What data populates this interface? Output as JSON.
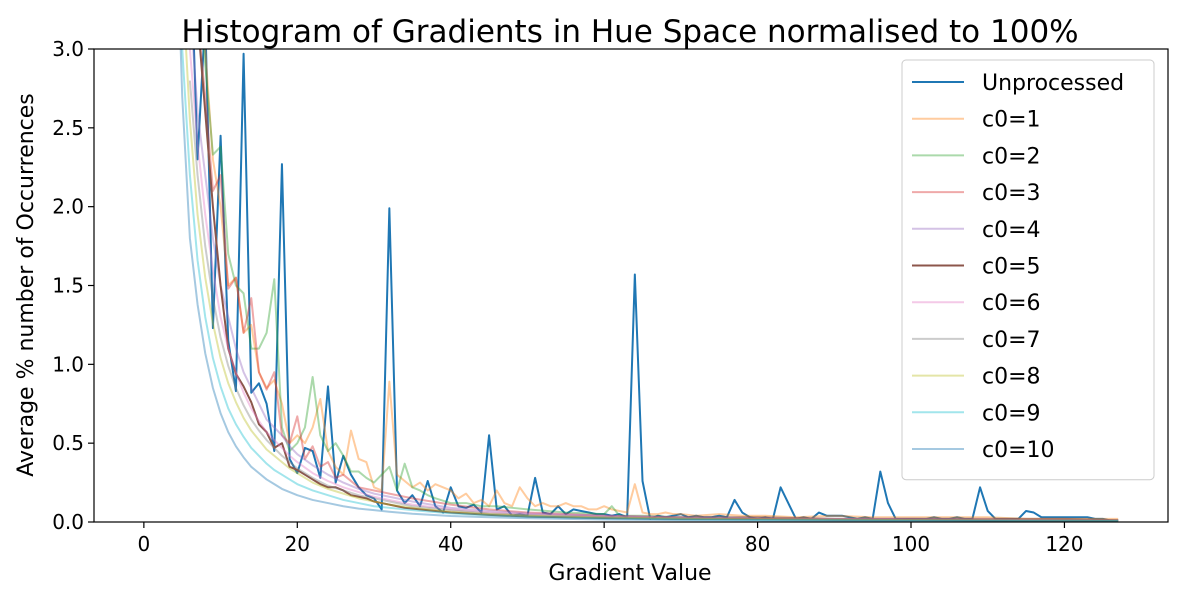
{
  "chart_data": {
    "type": "line",
    "title": "Histogram of Gradients in Hue Space normalised to 100%",
    "xlabel": "Gradient Value",
    "ylabel": "Average % number of Occurrences",
    "xlim": [
      -6.5,
      133.5
    ],
    "ylim": [
      0,
      3.0
    ],
    "xticks": [
      0,
      20,
      40,
      60,
      80,
      100,
      120
    ],
    "yticks": [
      0.0,
      0.5,
      1.0,
      1.5,
      2.0,
      2.5,
      3.0
    ],
    "ytick_labels": [
      "0.0",
      "0.5",
      "1.0",
      "1.5",
      "2.0",
      "2.5",
      "3.0"
    ],
    "grid": false,
    "legend_position": "top-right",
    "series": [
      {
        "name": "Unprocessed",
        "color": "#1f77b4",
        "alpha": 1.0,
        "x": [
          6,
          7,
          8,
          9,
          10,
          11,
          12,
          13,
          14,
          15,
          16,
          17,
          18,
          19,
          20,
          21,
          22,
          23,
          24,
          25,
          26,
          27,
          28,
          29,
          30,
          31,
          32,
          33,
          34,
          35,
          36,
          37,
          38,
          39,
          40,
          41,
          42,
          43,
          44,
          45,
          46,
          47,
          48,
          49,
          50,
          51,
          52,
          53,
          54,
          55,
          56,
          57,
          58,
          59,
          60,
          61,
          62,
          63,
          64,
          65,
          66,
          67,
          68,
          69,
          70,
          71,
          72,
          73,
          74,
          75,
          76,
          77,
          78,
          79,
          80,
          81,
          82,
          83,
          84,
          85,
          86,
          87,
          88,
          89,
          90,
          91,
          92,
          93,
          94,
          95,
          96,
          97,
          98,
          99,
          100,
          101,
          102,
          103,
          104,
          105,
          106,
          107,
          108,
          109,
          110,
          111,
          112,
          113,
          114,
          115,
          116,
          117,
          118,
          119,
          120,
          121,
          122,
          123,
          124,
          125,
          126,
          127
        ],
        "y": [
          3.8,
          2.3,
          3.2,
          1.23,
          2.45,
          1.15,
          0.83,
          2.97,
          0.82,
          0.88,
          0.75,
          0.45,
          2.27,
          0.4,
          0.31,
          0.47,
          0.45,
          0.28,
          0.86,
          0.25,
          0.42,
          0.3,
          0.22,
          0.17,
          0.15,
          0.08,
          1.99,
          0.2,
          0.12,
          0.17,
          0.1,
          0.26,
          0.1,
          0.06,
          0.22,
          0.1,
          0.09,
          0.11,
          0.06,
          0.55,
          0.08,
          0.1,
          0.04,
          0.05,
          0.04,
          0.28,
          0.06,
          0.05,
          0.1,
          0.05,
          0.08,
          0.07,
          0.06,
          0.05,
          0.05,
          0.04,
          0.05,
          0.03,
          1.57,
          0.26,
          0.02,
          0.04,
          0.03,
          0.04,
          0.05,
          0.03,
          0.04,
          0.03,
          0.03,
          0.04,
          0.03,
          0.14,
          0.06,
          0.03,
          0.02,
          0.03,
          0.02,
          0.22,
          0.12,
          0.02,
          0.03,
          0.02,
          0.06,
          0.04,
          0.04,
          0.04,
          0.03,
          0.02,
          0.03,
          0.02,
          0.32,
          0.12,
          0.02,
          0.02,
          0.02,
          0.02,
          0.02,
          0.03,
          0.02,
          0.02,
          0.03,
          0.02,
          0.02,
          0.22,
          0.07,
          0.02,
          0.02,
          0.02,
          0.02,
          0.07,
          0.06,
          0.03,
          0.03,
          0.03,
          0.03,
          0.03,
          0.03,
          0.03,
          0.02,
          0.02,
          0.01,
          0.01
        ]
      },
      {
        "name": "c0=1",
        "color": "#ff7f0e",
        "alpha": 0.4,
        "x": [
          7,
          8,
          9,
          10,
          11,
          12,
          13,
          14,
          15,
          16,
          17,
          18,
          19,
          20,
          21,
          22,
          23,
          24,
          25,
          26,
          27,
          28,
          29,
          30,
          31,
          32,
          33,
          34,
          35,
          36,
          37,
          38,
          39,
          40,
          41,
          42,
          43,
          44,
          45,
          46,
          47,
          48,
          49,
          50,
          51,
          52,
          53,
          54,
          55,
          56,
          57,
          58,
          59,
          60,
          61,
          62,
          63,
          64,
          65,
          66,
          67,
          68,
          69,
          70,
          72,
          75,
          78,
          81,
          85,
          90,
          95,
          100,
          105,
          110,
          115,
          120,
          127
        ],
        "y": [
          3.5,
          3.0,
          2.3,
          2.0,
          1.5,
          1.55,
          1.2,
          1.25,
          0.95,
          0.85,
          0.9,
          0.75,
          0.5,
          0.55,
          0.5,
          0.6,
          0.78,
          0.45,
          0.35,
          0.3,
          0.58,
          0.4,
          0.38,
          0.22,
          0.2,
          0.89,
          0.3,
          0.26,
          0.22,
          0.25,
          0.2,
          0.24,
          0.22,
          0.2,
          0.15,
          0.18,
          0.12,
          0.14,
          0.1,
          0.2,
          0.12,
          0.1,
          0.22,
          0.15,
          0.1,
          0.12,
          0.1,
          0.1,
          0.12,
          0.1,
          0.1,
          0.08,
          0.08,
          0.1,
          0.08,
          0.07,
          0.06,
          0.24,
          0.06,
          0.05,
          0.05,
          0.06,
          0.05,
          0.05,
          0.04,
          0.05,
          0.04,
          0.04,
          0.03,
          0.04,
          0.03,
          0.03,
          0.03,
          0.03,
          0.02,
          0.02,
          0.02
        ]
      },
      {
        "name": "c0=2",
        "color": "#2ca02c",
        "alpha": 0.4,
        "x": [
          7,
          8,
          9,
          10,
          11,
          12,
          13,
          14,
          15,
          16,
          17,
          18,
          19,
          20,
          21,
          22,
          23,
          24,
          25,
          26,
          27,
          28,
          29,
          30,
          31,
          32,
          33,
          34,
          35,
          36,
          37,
          38,
          40,
          42,
          44,
          46,
          48,
          50,
          55,
          60,
          61,
          62,
          65,
          70,
          80,
          90,
          100,
          110,
          120,
          127
        ],
        "y": [
          3.5,
          2.9,
          2.33,
          2.38,
          1.7,
          1.5,
          1.45,
          1.1,
          1.1,
          1.2,
          1.54,
          0.6,
          0.45,
          0.5,
          0.6,
          0.92,
          0.55,
          0.45,
          0.5,
          0.42,
          0.32,
          0.32,
          0.28,
          0.25,
          0.3,
          0.35,
          0.2,
          0.37,
          0.22,
          0.2,
          0.17,
          0.15,
          0.12,
          0.12,
          0.1,
          0.1,
          0.09,
          0.08,
          0.06,
          0.05,
          0.1,
          0.04,
          0.04,
          0.03,
          0.03,
          0.02,
          0.02,
          0.02,
          0.02,
          0.01
        ]
      },
      {
        "name": "c0=3",
        "color": "#d62728",
        "alpha": 0.4,
        "x": [
          7,
          8,
          9,
          10,
          11,
          12,
          13,
          14,
          15,
          16,
          17,
          18,
          19,
          20,
          21,
          22,
          23,
          24,
          25,
          26,
          28,
          30,
          32,
          35,
          40,
          45,
          50,
          60,
          70,
          80,
          90,
          100,
          110,
          120,
          127
        ],
        "y": [
          3.2,
          2.7,
          2.1,
          2.2,
          1.48,
          1.55,
          1.2,
          1.42,
          0.95,
          0.84,
          0.95,
          0.55,
          0.5,
          0.67,
          0.4,
          0.48,
          0.35,
          0.38,
          0.28,
          0.3,
          0.22,
          0.2,
          0.18,
          0.15,
          0.11,
          0.08,
          0.06,
          0.04,
          0.03,
          0.03,
          0.02,
          0.02,
          0.02,
          0.02,
          0.01
        ]
      },
      {
        "name": "c0=4",
        "color": "#9467bd",
        "alpha": 0.4,
        "x": [
          6,
          7,
          8,
          9,
          10,
          11,
          12,
          13,
          14,
          15,
          16,
          17,
          18,
          19,
          20,
          22,
          24,
          26,
          28,
          30,
          32,
          35,
          40,
          45,
          50,
          60,
          70,
          80,
          90,
          100,
          110,
          120,
          127
        ],
        "y": [
          3.3,
          2.6,
          2.2,
          1.8,
          1.5,
          1.3,
          1.1,
          0.95,
          0.85,
          0.75,
          0.65,
          0.6,
          0.55,
          0.48,
          0.43,
          0.36,
          0.3,
          0.25,
          0.21,
          0.18,
          0.16,
          0.13,
          0.09,
          0.07,
          0.055,
          0.04,
          0.03,
          0.025,
          0.02,
          0.02,
          0.015,
          0.015,
          0.01
        ]
      },
      {
        "name": "c0=5",
        "color": "#8c564b",
        "alpha": 1.0,
        "x": [
          7,
          8,
          9,
          10,
          11,
          12,
          13,
          14,
          15,
          16,
          17,
          18,
          19,
          20,
          21,
          22,
          23,
          24,
          25,
          26,
          27,
          28,
          29,
          30,
          31,
          32,
          34,
          36,
          38,
          40,
          45,
          50,
          55,
          60,
          70,
          80,
          90,
          100,
          110,
          120,
          127
        ],
        "y": [
          3.2,
          2.6,
          2.0,
          1.5,
          1.1,
          0.94,
          0.86,
          0.76,
          0.62,
          0.57,
          0.47,
          0.5,
          0.35,
          0.33,
          0.3,
          0.27,
          0.24,
          0.22,
          0.22,
          0.2,
          0.17,
          0.16,
          0.15,
          0.13,
          0.12,
          0.11,
          0.09,
          0.08,
          0.07,
          0.06,
          0.045,
          0.035,
          0.03,
          0.025,
          0.02,
          0.02,
          0.015,
          0.015,
          0.01,
          0.01,
          0.01
        ]
      },
      {
        "name": "c0=6",
        "color": "#e377c2",
        "alpha": 0.4,
        "x": [
          6,
          7,
          8,
          9,
          10,
          11,
          12,
          13,
          14,
          15,
          16,
          17,
          18,
          19,
          20,
          22,
          24,
          26,
          28,
          30,
          32,
          35,
          40,
          45,
          50,
          60,
          70,
          80,
          90,
          100,
          110,
          120,
          127
        ],
        "y": [
          3.0,
          2.4,
          1.95,
          1.6,
          1.3,
          1.1,
          0.95,
          0.82,
          0.72,
          0.64,
          0.57,
          0.52,
          0.47,
          0.42,
          0.38,
          0.31,
          0.26,
          0.22,
          0.19,
          0.16,
          0.14,
          0.11,
          0.08,
          0.06,
          0.05,
          0.035,
          0.025,
          0.02,
          0.02,
          0.015,
          0.015,
          0.01,
          0.01
        ]
      },
      {
        "name": "c0=7",
        "color": "#7f7f7f",
        "alpha": 0.4,
        "x": [
          6,
          7,
          8,
          9,
          10,
          11,
          12,
          13,
          14,
          15,
          16,
          17,
          18,
          19,
          20,
          22,
          24,
          26,
          28,
          30,
          32,
          35,
          40,
          45,
          50,
          60,
          70,
          80,
          90,
          100,
          110,
          120,
          127
        ],
        "y": [
          2.8,
          2.2,
          1.75,
          1.42,
          1.17,
          0.99,
          0.85,
          0.74,
          0.65,
          0.58,
          0.52,
          0.47,
          0.42,
          0.38,
          0.34,
          0.28,
          0.23,
          0.2,
          0.17,
          0.15,
          0.13,
          0.1,
          0.075,
          0.055,
          0.045,
          0.032,
          0.024,
          0.019,
          0.016,
          0.013,
          0.011,
          0.01,
          0.009
        ]
      },
      {
        "name": "c0=8",
        "color": "#bcbd22",
        "alpha": 0.4,
        "x": [
          5.5,
          6,
          7,
          8,
          9,
          10,
          11,
          12,
          13,
          14,
          15,
          16,
          17,
          18,
          19,
          20,
          22,
          24,
          26,
          28,
          30,
          32,
          35,
          40,
          45,
          50,
          60,
          70,
          80,
          90,
          100,
          110,
          120,
          127
        ],
        "y": [
          3.0,
          2.55,
          1.95,
          1.55,
          1.26,
          1.04,
          0.88,
          0.76,
          0.66,
          0.58,
          0.52,
          0.46,
          0.42,
          0.38,
          0.34,
          0.31,
          0.25,
          0.21,
          0.18,
          0.15,
          0.13,
          0.11,
          0.09,
          0.065,
          0.05,
          0.04,
          0.028,
          0.021,
          0.017,
          0.014,
          0.012,
          0.01,
          0.009,
          0.008
        ]
      },
      {
        "name": "c0=9",
        "color": "#17becf",
        "alpha": 0.4,
        "x": [
          5,
          6,
          7,
          8,
          9,
          10,
          11,
          12,
          13,
          14,
          15,
          16,
          17,
          18,
          19,
          20,
          22,
          24,
          26,
          28,
          30,
          32,
          35,
          40,
          45,
          50,
          60,
          70,
          80,
          90,
          100,
          110,
          120,
          127
        ],
        "y": [
          3.0,
          2.2,
          1.66,
          1.3,
          1.04,
          0.86,
          0.72,
          0.62,
          0.54,
          0.47,
          0.42,
          0.37,
          0.33,
          0.3,
          0.27,
          0.24,
          0.2,
          0.17,
          0.14,
          0.12,
          0.1,
          0.09,
          0.075,
          0.055,
          0.042,
          0.033,
          0.023,
          0.017,
          0.013,
          0.011,
          0.009,
          0.008,
          0.007,
          0.006
        ]
      },
      {
        "name": "c0=10",
        "color": "#1f77b4",
        "alpha": 0.4,
        "x": [
          4.8,
          5,
          6,
          7,
          8,
          9,
          10,
          11,
          12,
          13,
          14,
          15,
          16,
          17,
          18,
          19,
          20,
          22,
          24,
          26,
          28,
          30,
          32,
          35,
          40,
          45,
          50,
          60,
          70,
          80,
          90,
          100,
          110,
          120,
          127
        ],
        "y": [
          3.0,
          2.7,
          1.8,
          1.38,
          1.07,
          0.85,
          0.69,
          0.57,
          0.48,
          0.41,
          0.35,
          0.31,
          0.27,
          0.24,
          0.21,
          0.19,
          0.17,
          0.14,
          0.12,
          0.1,
          0.085,
          0.075,
          0.065,
          0.052,
          0.038,
          0.03,
          0.024,
          0.016,
          0.012,
          0.01,
          0.008,
          0.007,
          0.006,
          0.005,
          0.005
        ]
      }
    ]
  }
}
